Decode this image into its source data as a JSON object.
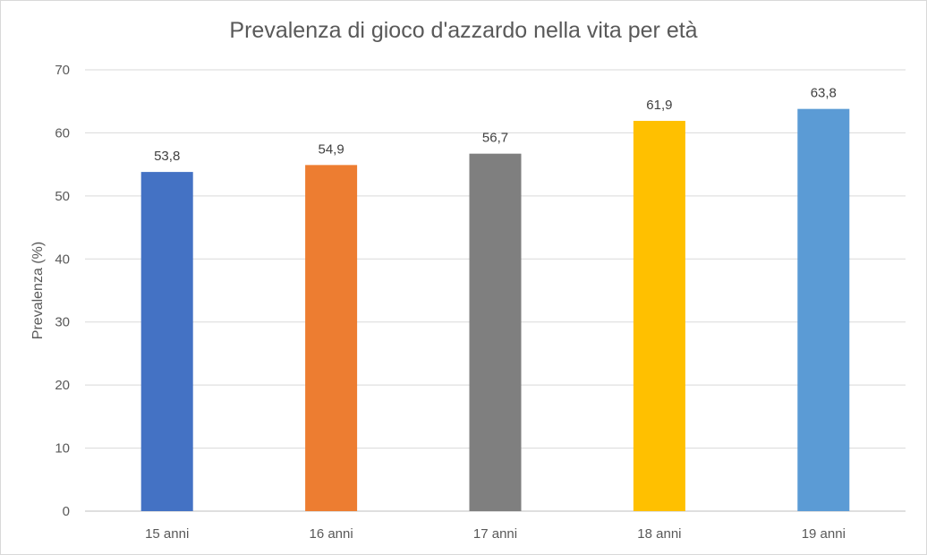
{
  "chart_data": {
    "type": "bar",
    "title": "Prevalenza di gioco d'azzardo nella vita per età",
    "ylabel": "Prevalenza (%)",
    "xlabel": "",
    "categories": [
      "15 anni",
      "16 anni",
      "17 anni",
      "18 anni",
      "19 anni"
    ],
    "values": [
      53.8,
      54.9,
      56.7,
      61.9,
      63.8
    ],
    "value_labels": [
      "53,8",
      "54,9",
      "56,7",
      "61,9",
      "63,8"
    ],
    "colors": [
      "#4472C4",
      "#ED7D31",
      "#7F7F7F",
      "#FFC000",
      "#5B9BD5"
    ],
    "ylim": [
      0,
      70
    ],
    "yticks": [
      0,
      10,
      20,
      30,
      40,
      50,
      60,
      70
    ],
    "grid": true,
    "legend": "none"
  }
}
